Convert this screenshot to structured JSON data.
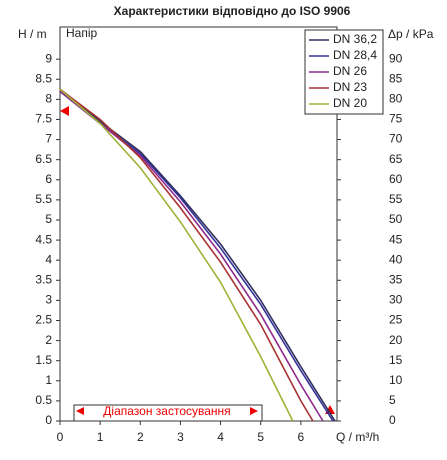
{
  "chart_data": {
    "type": "line",
    "title": "Характеристики відповідно до ISO 9906",
    "ylabel": "H / m",
    "y2label": "Δp / kPa",
    "xlabel": "Q / m³/h",
    "curve_label": "Напір",
    "annotation": "Діапазон застосування",
    "xlim": [
      0,
      6.9
    ],
    "xticks": [
      0,
      1,
      2,
      3,
      4,
      5,
      6
    ],
    "ylim": [
      0,
      9.8
    ],
    "yticks": [
      0,
      0.5,
      1,
      1.5,
      2,
      2.5,
      3,
      3.5,
      4,
      4.5,
      5,
      5.5,
      6,
      6.5,
      7,
      7.5,
      8,
      8.5,
      9
    ],
    "y2lim": [
      0,
      98
    ],
    "y2ticks": [
      0,
      5,
      10,
      15,
      20,
      25,
      30,
      35,
      40,
      45,
      50,
      55,
      60,
      65,
      70,
      75,
      80,
      85,
      90
    ],
    "legend": "upper right",
    "series": [
      {
        "name": "DN 36,2",
        "color": "#2e2f5c",
        "x": [
          0,
          1,
          2,
          3,
          4,
          5,
          6,
          6.85
        ],
        "values": [
          8.25,
          7.45,
          6.7,
          5.6,
          4.4,
          3.0,
          1.35,
          0
        ]
      },
      {
        "name": "DN 28,4",
        "color": "#34329a",
        "x": [
          0,
          1,
          2,
          3,
          4,
          5,
          6,
          6.8
        ],
        "values": [
          8.2,
          7.4,
          6.65,
          5.55,
          4.3,
          2.9,
          1.25,
          0
        ]
      },
      {
        "name": "DN 26",
        "color": "#8e2a8e",
        "x": [
          0,
          1,
          2,
          3,
          4,
          5,
          6,
          6.55
        ],
        "values": [
          8.2,
          7.4,
          6.6,
          5.45,
          4.15,
          2.65,
          0.9,
          0
        ]
      },
      {
        "name": "DN 23",
        "color": "#a83232",
        "x": [
          0,
          1,
          2,
          3,
          4,
          5,
          6,
          6.3
        ],
        "values": [
          8.25,
          7.5,
          6.55,
          5.3,
          3.95,
          2.4,
          0.5,
          0
        ]
      },
      {
        "name": "DN 20",
        "color": "#a2b236",
        "x": [
          0,
          1,
          2,
          3,
          4,
          5,
          5.8
        ],
        "values": [
          8.25,
          7.4,
          6.3,
          4.95,
          3.45,
          1.6,
          0
        ]
      }
    ]
  }
}
